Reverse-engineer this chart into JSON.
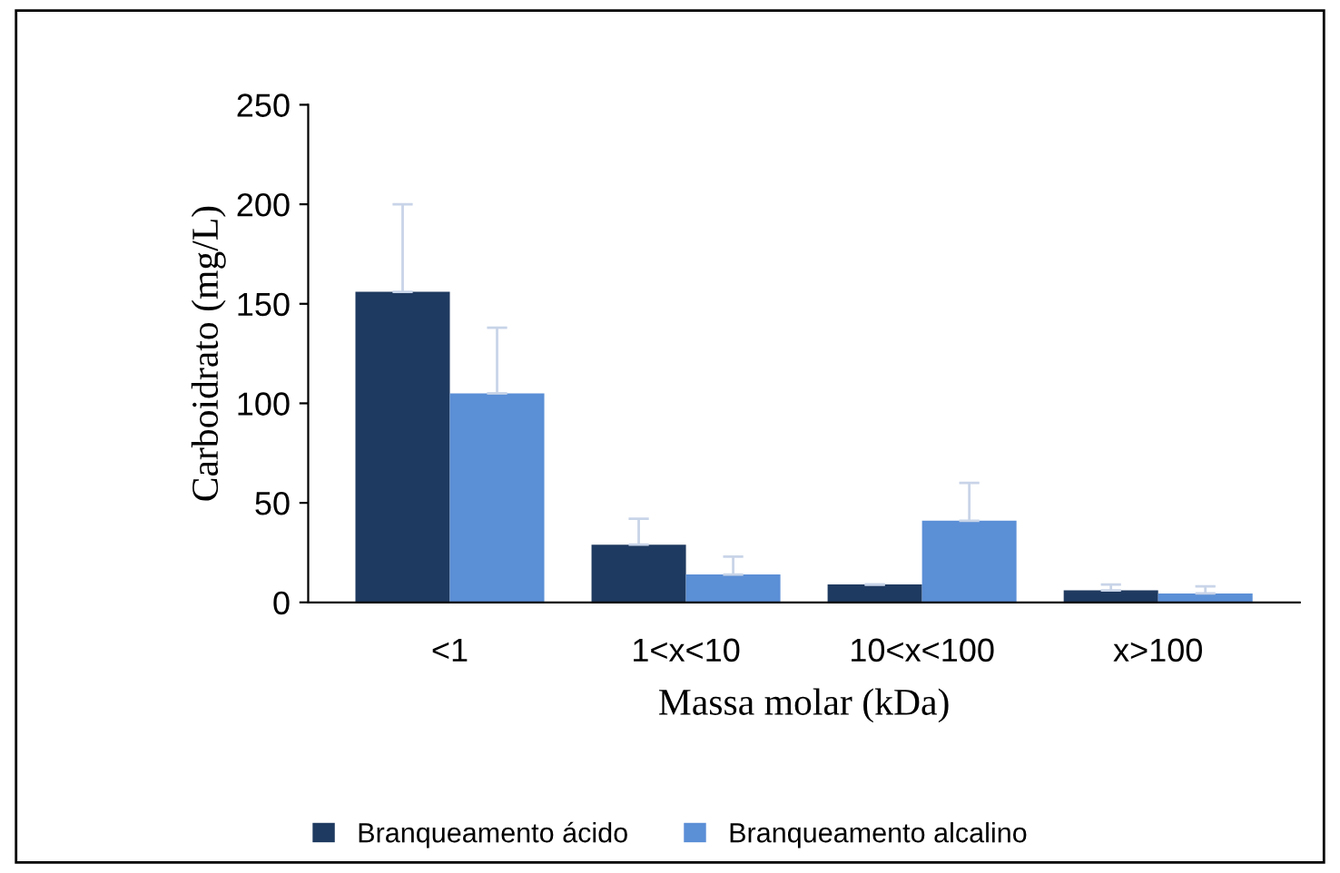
{
  "chart_data": {
    "type": "bar",
    "xlabel": "Massa molar (kDa)",
    "ylabel": "Carboidrato (mg/L)",
    "categories": [
      "<1",
      "1<x<10",
      "10<x<100",
      "x>100"
    ],
    "series": [
      {
        "name": "Branqueamento ácido",
        "color": "#1f3a60",
        "values": [
          156,
          29,
          9,
          6
        ],
        "errors": [
          [
            156,
            200
          ],
          [
            29,
            42
          ],
          [
            9,
            9
          ],
          [
            6,
            9
          ]
        ]
      },
      {
        "name": "Branqueamento alcalino",
        "color": "#5b8fd6",
        "values": [
          105,
          14,
          41,
          4.5
        ],
        "errors": [
          [
            105,
            138
          ],
          [
            14,
            23
          ],
          [
            41,
            60
          ],
          [
            4.5,
            8
          ]
        ]
      }
    ],
    "ylim": [
      0,
      250
    ],
    "yticks": [
      0,
      50,
      100,
      150,
      200,
      250
    ],
    "grid": false,
    "legend": "bottom"
  }
}
